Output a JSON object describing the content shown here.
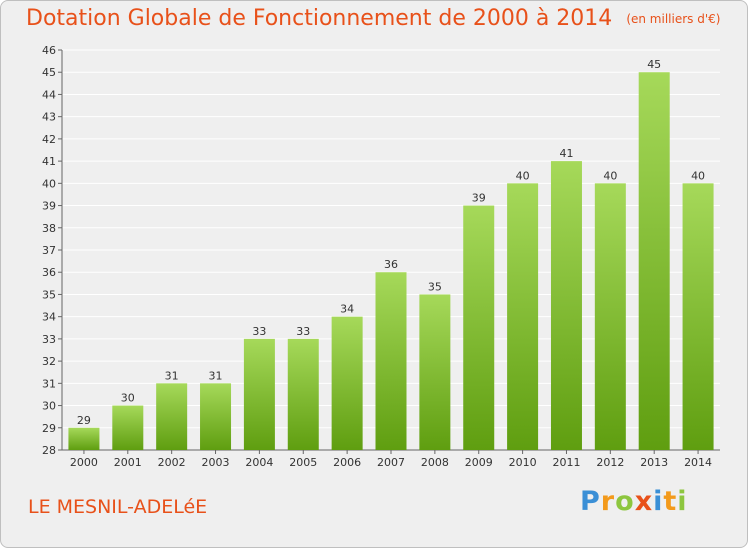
{
  "title": "Dotation Globale de Fonctionnement de 2000 à 2014",
  "unit": "(en milliers d'€)",
  "commune": "LE MESNIL-ADELéE",
  "logo": {
    "letters": [
      "P",
      "r",
      "o",
      "x",
      "i",
      "t",
      "i"
    ],
    "colors": [
      "#3a8fd6",
      "#f39a1b",
      "#8dc63f",
      "#e8511a",
      "#3a8fd6",
      "#f39a1b",
      "#8dc63f"
    ]
  },
  "colors": {
    "bar_top": "#a6d95a",
    "bar_bottom": "#5f9e10",
    "title": "#e8511a",
    "grid": "#ffffff"
  },
  "chart_data": {
    "type": "bar",
    "categories": [
      "2000",
      "2001",
      "2002",
      "2003",
      "2004",
      "2005",
      "2006",
      "2007",
      "2008",
      "2009",
      "2010",
      "2011",
      "2012",
      "2013",
      "2014"
    ],
    "values": [
      29,
      30,
      31,
      31,
      33,
      33,
      34,
      36,
      35,
      39,
      40,
      41,
      40,
      45,
      40
    ],
    "title": "Dotation Globale de Fonctionnement de 2000 à 2014",
    "ylim": [
      28,
      46
    ],
    "yticks": [
      28,
      29,
      30,
      31,
      32,
      33,
      34,
      35,
      36,
      37,
      38,
      39,
      40,
      41,
      42,
      43,
      44,
      45,
      46
    ],
    "grid": true
  }
}
